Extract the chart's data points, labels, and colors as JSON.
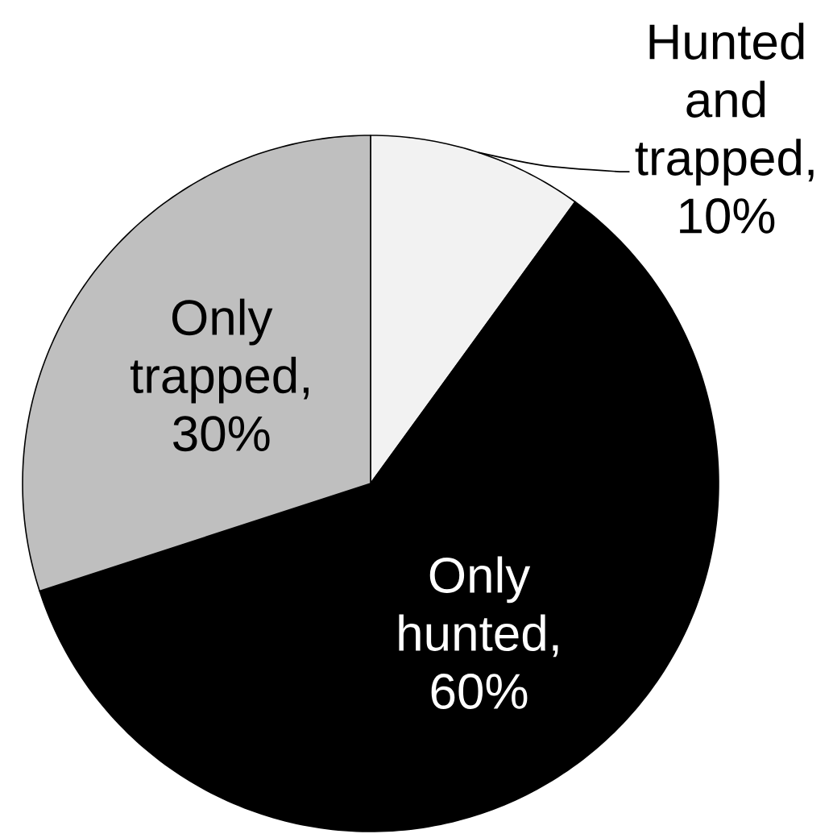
{
  "chart_data": {
    "type": "pie",
    "categories": [
      null,
      null,
      null
    ],
    "values": [
      10,
      60,
      30
    ],
    "colors": [
      "#f2f2f2",
      "#000000",
      "#bfbfbf"
    ],
    "value_labels": [
      "Hunted and trapped, 10%",
      "Only hunted, 60%",
      "Only trapped, 30%"
    ]
  }
}
